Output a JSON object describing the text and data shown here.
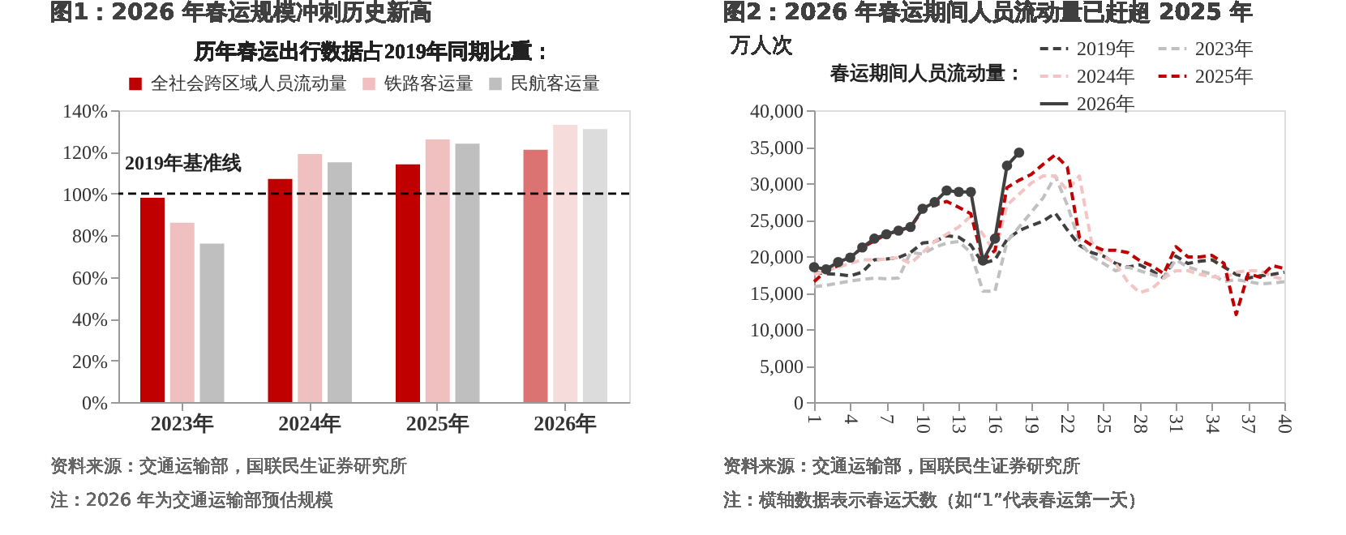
{
  "chart_data": [
    {
      "type": "bar",
      "title": "图1：2026 年春运规模冲刺历史新高",
      "subtitle": "历年春运出行数据占2019年同期比重：",
      "categories": [
        "2023年",
        "2024年",
        "2025年",
        "2026年"
      ],
      "series": [
        {
          "name": "全社会跨区域人员流动量",
          "color": "#c00000",
          "values": [
            98,
            107,
            114,
            121
          ]
        },
        {
          "name": "铁路客运量",
          "color": "#f0c0c0",
          "values": [
            86,
            119,
            126,
            133
          ]
        },
        {
          "name": "民航客运量",
          "color": "#bfbfbf",
          "values": [
            76,
            115,
            124,
            131
          ]
        }
      ],
      "ylim": [
        0,
        140
      ],
      "yticks": [
        {
          "value": 0,
          "label": "0%"
        },
        {
          "value": 20,
          "label": "20%"
        },
        {
          "value": 40,
          "label": "40%"
        },
        {
          "value": 60,
          "label": "60%"
        },
        {
          "value": 80,
          "label": "80%"
        },
        {
          "value": 100,
          "label": "100%"
        },
        {
          "value": 120,
          "label": "120%"
        },
        {
          "value": 140,
          "label": "140%"
        }
      ],
      "ref_lines": [
        {
          "axis": "y",
          "value": 100,
          "label": "2019年基准线",
          "color": "#000000",
          "line_style": "dashed"
        }
      ],
      "legend": "top",
      "grid": false,
      "annotations": [
        "资料来源：交通运输部，国联民生证券研究所",
        "注：2026 年为交通运输部预估规模"
      ]
    },
    {
      "type": "line",
      "title": "图2：2026 年春运期间人员流动量已赶超 2025 年",
      "ylabel": "万人次",
      "legend_title": "春运期间人员流动量：",
      "x": [
        1,
        2,
        3,
        4,
        5,
        6,
        7,
        8,
        9,
        10,
        11,
        12,
        13,
        14,
        15,
        16,
        17,
        18,
        19,
        20,
        21,
        22,
        23,
        24,
        25,
        26,
        27,
        28,
        29,
        30,
        31,
        32,
        33,
        34,
        35,
        36,
        37,
        38,
        39,
        40
      ],
      "series": [
        {
          "name": "2019年",
          "color": "#404040",
          "line_style": "dashed",
          "marker": "none",
          "values": [
            17800,
            17600,
            17500,
            17300,
            17800,
            19500,
            19600,
            19800,
            20500,
            21800,
            22000,
            22800,
            22600,
            21500,
            19000,
            19500,
            22300,
            23500,
            24200,
            24800,
            25900,
            23600,
            21500,
            20500,
            20000,
            19000,
            18500,
            18800,
            18000,
            17000,
            20000,
            19000,
            19300,
            19500,
            18500,
            17500,
            17000,
            17300,
            17500,
            17800
          ]
        },
        {
          "name": "2023年",
          "color": "#c0c0c0",
          "line_style": "dashed",
          "marker": "none",
          "values": [
            15800,
            16000,
            16300,
            16600,
            16800,
            17000,
            16900,
            17000,
            20500,
            20300,
            21200,
            21800,
            22000,
            20500,
            15200,
            15200,
            22000,
            24000,
            26000,
            28000,
            31000,
            27000,
            22000,
            20000,
            19000,
            18000,
            18500,
            18000,
            17500,
            17000,
            19500,
            18500,
            18000,
            17500,
            16500,
            16800,
            16500,
            16200,
            16300,
            16500
          ]
        },
        {
          "name": "2024年",
          "color": "#f2c4c4",
          "line_style": "dashed",
          "marker": "none",
          "values": [
            17500,
            18000,
            18500,
            19000,
            19500,
            19500,
            19600,
            19800,
            19000,
            20500,
            22000,
            23000,
            24000,
            25500,
            23000,
            20500,
            27000,
            28500,
            30000,
            31000,
            31000,
            29000,
            31000,
            22000,
            20000,
            19000,
            16500,
            15000,
            15500,
            17000,
            18000,
            18000,
            17500,
            17200,
            17000,
            17800,
            18000,
            18000,
            17200,
            16800
          ]
        },
        {
          "name": "2025年",
          "color": "#c00000",
          "line_style": "dashed",
          "marker": "none",
          "values": [
            16500,
            18000,
            18700,
            19800,
            21200,
            22100,
            23000,
            23500,
            24000,
            26300,
            27000,
            27500,
            26700,
            25800,
            19400,
            20800,
            29400,
            30400,
            31200,
            32600,
            33900,
            32200,
            22600,
            21500,
            20800,
            20800,
            20500,
            19400,
            18700,
            17600,
            21300,
            19900,
            19900,
            20100,
            19000,
            12000,
            17600,
            17100,
            18700,
            18300
          ]
        },
        {
          "name": "2026年",
          "color": "#404040",
          "line_style": "solid",
          "marker": "circle",
          "values": [
            18500,
            18200,
            19200,
            19800,
            21200,
            22400,
            23000,
            23500,
            24000,
            26500,
            27400,
            29000,
            28800,
            28800,
            19400,
            22400,
            32400,
            34200,
            null,
            null,
            null,
            null,
            null,
            null,
            null,
            null,
            null,
            null,
            null,
            null,
            null,
            null,
            null,
            null,
            null,
            null,
            null,
            null,
            null,
            null
          ]
        }
      ],
      "xlim": [
        1,
        40
      ],
      "xticks": [
        1,
        4,
        7,
        10,
        13,
        16,
        19,
        22,
        25,
        28,
        31,
        34,
        37,
        40
      ],
      "ylim": [
        0,
        40000
      ],
      "yticks": [
        0,
        {
          "value": 5000,
          "label": "5,000"
        },
        {
          "value": 10000,
          "label": "10,000"
        },
        {
          "value": 15000,
          "label": "15,000"
        },
        {
          "value": 20000,
          "label": "20,000"
        },
        {
          "value": 25000,
          "label": "25,000"
        },
        {
          "value": 30000,
          "label": "30,000"
        },
        {
          "value": 35000,
          "label": "35,000"
        },
        {
          "value": 40000,
          "label": "40,000"
        }
      ],
      "legend": "top right",
      "grid": false,
      "annotations": [
        "资料来源：交通运输部，国联民生证券研究所",
        "注：横轴数据表示春运天数（如“1”代表春运第一天）"
      ]
    }
  ]
}
